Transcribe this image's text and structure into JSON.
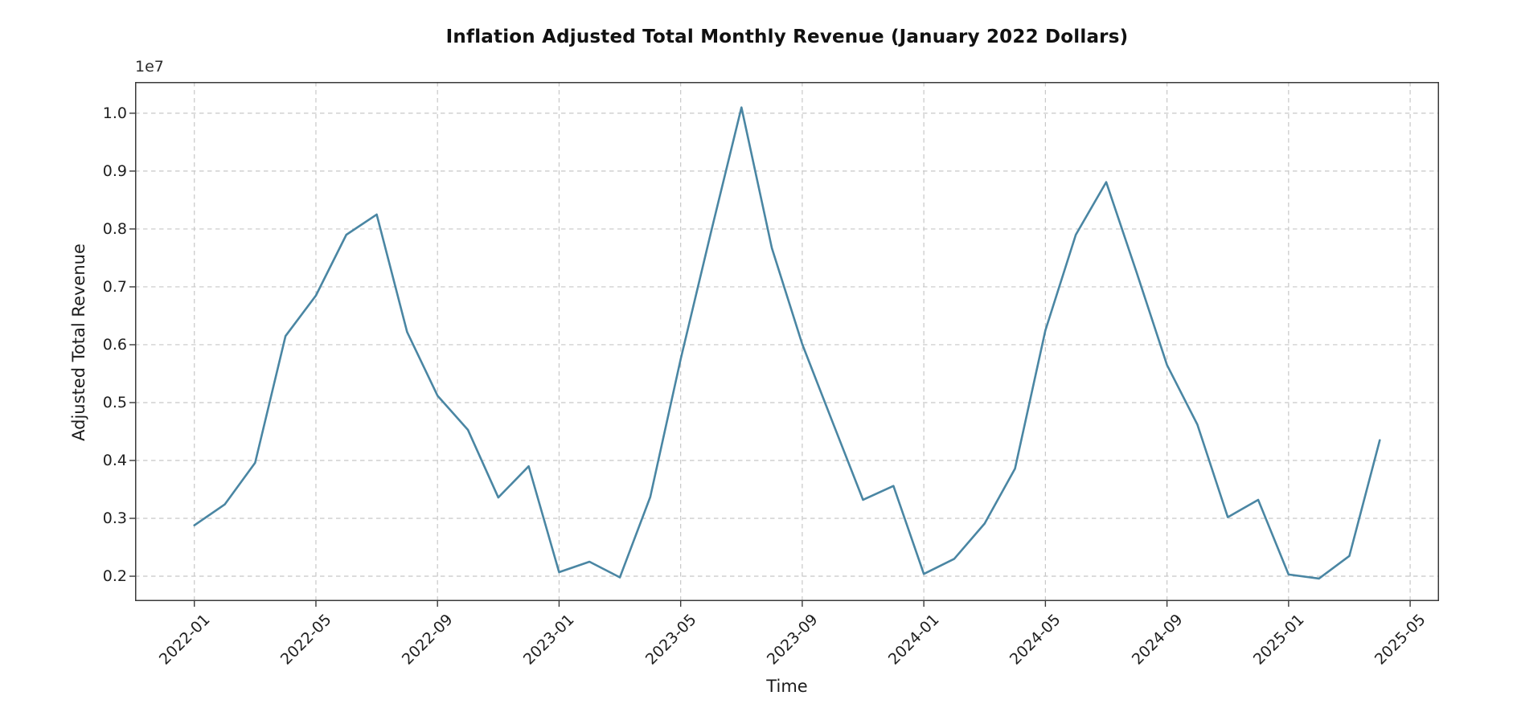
{
  "figure": {
    "background": "#ffffff",
    "text_color": "#1f1f1f",
    "spine_color": "#3a3a3a",
    "grid_color": "#c7c7c7"
  },
  "chart_data": {
    "type": "line",
    "title": "Inflation Adjusted Total Monthly Revenue (January 2022 Dollars)",
    "xlabel": "Time",
    "ylabel": "Adjusted Total Revenue",
    "y_offset_text": "1e7",
    "line_color": "#4a86a3",
    "line_width": 2.6,
    "grid": "both, dashed",
    "legend": "none",
    "x": [
      "2022-01",
      "2022-02",
      "2022-03",
      "2022-04",
      "2022-05",
      "2022-06",
      "2022-07",
      "2022-08",
      "2022-09",
      "2022-10",
      "2022-11",
      "2022-12",
      "2023-01",
      "2023-02",
      "2023-03",
      "2023-04",
      "2023-05",
      "2023-06",
      "2023-07",
      "2023-08",
      "2023-09",
      "2023-10",
      "2023-11",
      "2023-12",
      "2024-01",
      "2024-02",
      "2024-03",
      "2024-04",
      "2024-05",
      "2024-06",
      "2024-07",
      "2024-08",
      "2024-09",
      "2024-10",
      "2024-11",
      "2024-12",
      "2025-01",
      "2025-02",
      "2025-03",
      "2025-04"
    ],
    "values_1e7": [
      0.288,
      0.324,
      0.396,
      0.615,
      0.685,
      0.79,
      0.825,
      0.622,
      0.512,
      0.453,
      0.336,
      0.39,
      0.207,
      0.225,
      0.198,
      0.337,
      0.575,
      0.795,
      1.01,
      0.767,
      0.601,
      0.466,
      0.332,
      0.356,
      0.204,
      0.23,
      0.291,
      0.386,
      0.625,
      0.79,
      0.881,
      0.725,
      0.565,
      0.462,
      0.302,
      0.332,
      0.203,
      0.196,
      0.235,
      0.435
    ],
    "y_unit_multiplier": 10000000,
    "yticks": [
      "0.2",
      "0.3",
      "0.4",
      "0.5",
      "0.6",
      "0.7",
      "0.8",
      "0.9",
      "1.0"
    ],
    "xticks": [
      "2022-01",
      "2022-05",
      "2022-09",
      "2023-01",
      "2023-05",
      "2023-09",
      "2024-01",
      "2024-05",
      "2024-09",
      "2025-01",
      "2025-05"
    ],
    "ylim": [
      0.157,
      1.054
    ],
    "xlim_months_rel_2022_01": [
      -1.95,
      40.95
    ]
  }
}
